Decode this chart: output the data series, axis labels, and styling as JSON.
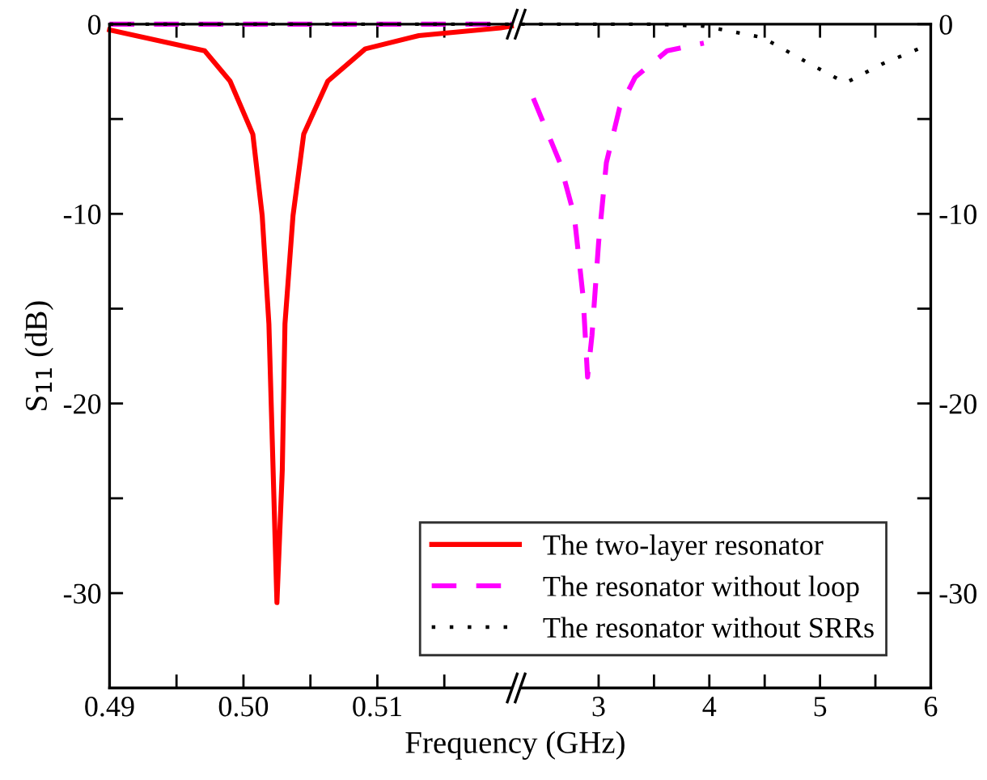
{
  "chart_data": [
    {
      "type": "line",
      "xlabel": "Frequency (GHz)",
      "ylabel": "S$_{11}$ (dB)",
      "xlim": [
        0.49,
        0.52
      ],
      "ylim": [
        -35,
        0
      ],
      "xticks": [
        {
          "value": 0.49,
          "label": "0.49"
        },
        {
          "value": 0.495,
          "label": null
        },
        {
          "value": 0.5,
          "label": "0.50"
        },
        {
          "value": 0.505,
          "label": null
        },
        {
          "value": 0.51,
          "label": "0.51"
        },
        {
          "value": 0.515,
          "label": null
        }
      ],
      "yticks": [
        0,
        {
          "value": -5,
          "label": null
        },
        {
          "value": -10,
          "label": "-10"
        },
        {
          "value": -15,
          "label": null
        },
        {
          "value": -20,
          "label": "-20"
        },
        {
          "value": -25,
          "label": null
        },
        {
          "value": -30,
          "label": "-30"
        }
      ],
      "grid": false,
      "legend": "bottom right",
      "series": [
        {
          "name": "The two-layer resonator",
          "color": "#ff0000",
          "line_style": "solid",
          "x": [
            0.49,
            0.4971,
            0.499,
            0.5007,
            0.5014,
            0.5019,
            0.5025,
            0.5029,
            0.5031,
            0.5037,
            0.5045,
            0.5063,
            0.5091,
            0.5131,
            0.5192,
            0.52
          ],
          "values": [
            -0.3,
            -1.4,
            -3.0,
            -5.8,
            -10.1,
            -15.8,
            -30.5,
            -23.5,
            -15.8,
            -10.1,
            -5.8,
            -3.0,
            -1.3,
            -0.6,
            -0.2,
            -0.1
          ]
        },
        {
          "name": "The resonator without loop",
          "color": "#ff00ff",
          "line_style": "dashed",
          "x": [
            0.49,
            0.52
          ],
          "values": [
            0,
            0
          ]
        },
        {
          "name": "The resonator without SRRs",
          "color": "#000000",
          "line_style": "dotted",
          "x": [
            0.49,
            0.52
          ],
          "values": [
            0,
            0
          ]
        }
      ]
    },
    {
      "type": "line",
      "xlim": [
        2.3,
        6
      ],
      "ylim": [
        -35,
        0
      ],
      "xticks": [
        3,
        {
          "value": 3.5,
          "label": null
        },
        4,
        {
          "value": 4.5,
          "label": null
        },
        5,
        {
          "value": 5.5,
          "label": null
        },
        6
      ],
      "yticks": [
        0,
        {
          "value": -5,
          "label": null
        },
        {
          "value": -10,
          "label": "-10"
        },
        {
          "value": -15,
          "label": null
        },
        {
          "value": -20,
          "label": "-20"
        },
        {
          "value": -25,
          "label": null
        },
        {
          "value": -30,
          "label": "-30"
        }
      ],
      "grid": false,
      "series": [
        {
          "color": "#ff00ff",
          "line_style": "dashed",
          "x": [
            2.41,
            2.65,
            2.78,
            2.86,
            2.9,
            2.94,
            3.0,
            3.07,
            3.19,
            3.33,
            3.62,
            3.95
          ],
          "values": [
            -3.9,
            -7.3,
            -10.1,
            -14.4,
            -18.6,
            -16.4,
            -11.5,
            -7.3,
            -4.4,
            -2.8,
            -1.4,
            -1.0
          ]
        },
        {
          "color": "#000000",
          "line_style": "dotted",
          "x": [
            2.3,
            3.5,
            3.95,
            4.48,
            4.91,
            5.23,
            5.56,
            5.89,
            6.0
          ],
          "values": [
            0,
            0,
            -0.1,
            -0.7,
            -2.1,
            -3.1,
            -2.1,
            -1.3,
            -1.1
          ]
        }
      ]
    }
  ]
}
